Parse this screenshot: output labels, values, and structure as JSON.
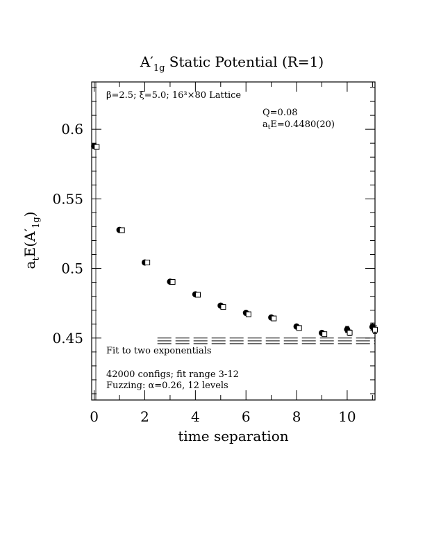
{
  "chart_data": {
    "type": "scatter",
    "title": "A",
    "title_prime": "′",
    "title_sub": "1g",
    "title_rest": " Static Potential (R=1)",
    "xlabel": "time separation",
    "ylabel_prefix": "a",
    "ylabel_sub_t": "t",
    "ylabel_mid": "E(A",
    "ylabel_prime": "′",
    "ylabel_sub": "1g",
    "ylabel_close": ")",
    "xlim": [
      -0.1,
      11.1
    ],
    "ylim": [
      0.4055,
      0.634
    ],
    "x_ticks": [
      0,
      2,
      4,
      6,
      8,
      10
    ],
    "x_tick_labels": [
      "0",
      "2",
      "4",
      "6",
      "8",
      "10"
    ],
    "y_ticks": [
      0.45,
      0.5,
      0.55,
      0.6
    ],
    "y_tick_labels": [
      "0.45",
      "0.5",
      "0.55",
      "0.6"
    ],
    "annotations": {
      "lattice_text": "β=2.5; ξ=5.0; 16³×80 Lattice",
      "q_text": "Q=0.08",
      "energy_prefix": "a",
      "energy_sub": "t",
      "energy_rest": "E=0.4480(20)",
      "fit_label": "Fit to two exponentials",
      "configs_text": "42000 configs; fit range 3-12",
      "fuzzing_text": "Fuzzing: α=0.26, 12 levels"
    },
    "series": [
      {
        "marker": "filled-circle",
        "x": [
          0,
          1,
          2,
          3,
          4,
          5,
          6,
          7,
          8,
          9,
          10,
          11
        ],
        "y": [
          0.5879,
          0.5277,
          0.5043,
          0.4905,
          0.4814,
          0.4733,
          0.4681,
          0.4648,
          0.4583,
          0.4537,
          0.4562,
          0.458
        ],
        "err": [
          0.0005,
          0.0005,
          0.0005,
          0.0005,
          0.0006,
          0.0006,
          0.0007,
          0.0008,
          0.001,
          0.0012,
          0.0022,
          0.0028
        ]
      },
      {
        "marker": "open-square",
        "x": [
          0.1,
          1.1,
          2.1,
          3.1,
          4.1,
          5.1,
          6.1,
          7.1,
          8.1,
          9.1,
          10.1,
          11.1
        ],
        "y": [
          0.5873,
          0.5275,
          0.5043,
          0.4903,
          0.4811,
          0.4723,
          0.4671,
          0.4641,
          0.4572,
          0.4528,
          0.4538,
          0.456
        ],
        "err": [
          0.0005,
          0.0005,
          0.0005,
          0.0005,
          0.0006,
          0.0006,
          0.0007,
          0.0008,
          0.001,
          0.0012,
          0.002,
          0.0028
        ]
      }
    ],
    "fit": {
      "x_range": [
        2.5,
        11.1
      ],
      "lines": [
        0.45,
        0.448,
        0.446
      ]
    }
  }
}
